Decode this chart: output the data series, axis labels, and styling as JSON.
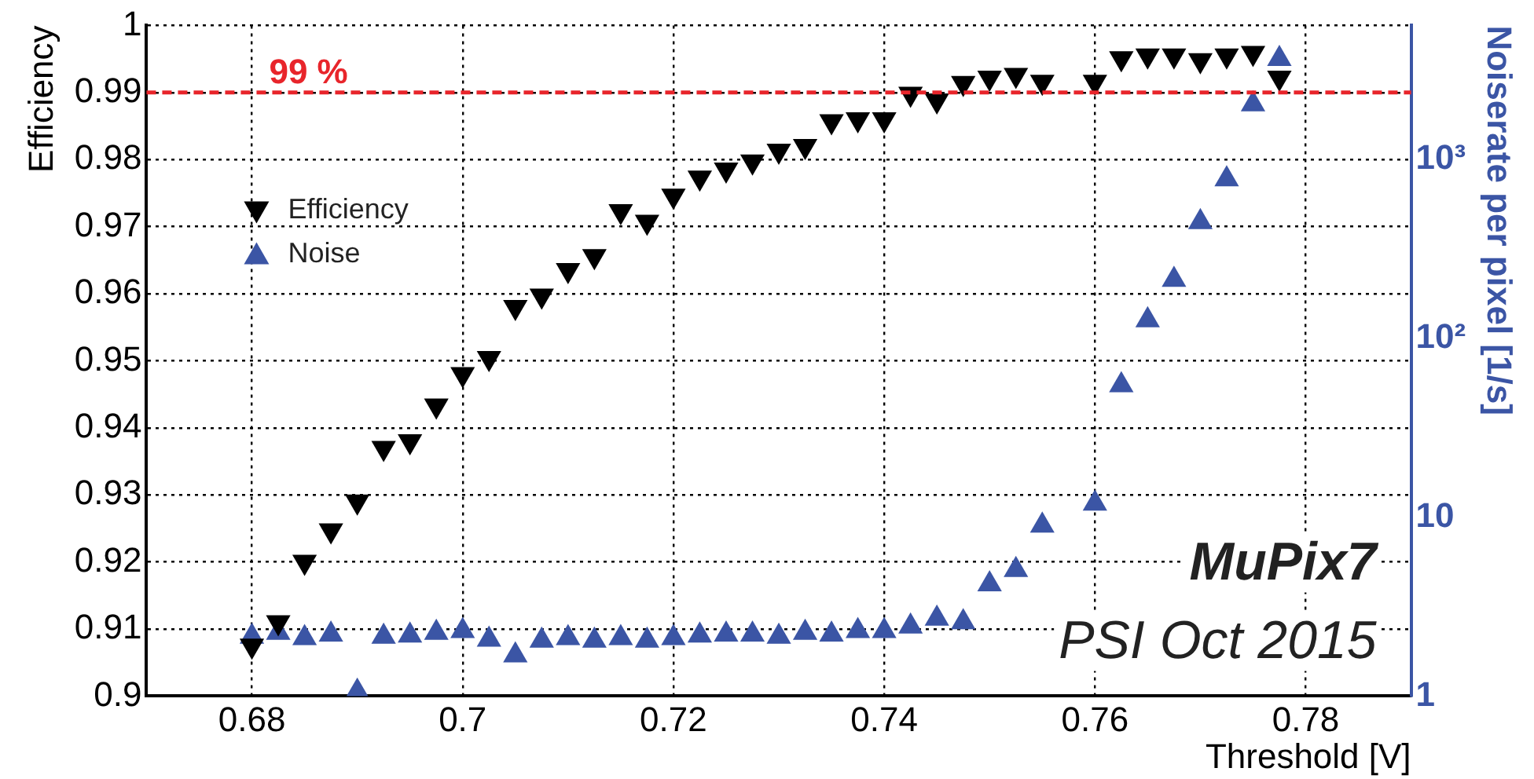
{
  "chart_data": {
    "type": "scatter",
    "xlabel": "Threshold [V]",
    "ylabel": "Efficiency",
    "y2label": "Noiserate per pixel [1/s]",
    "x": [
      0.68,
      0.6825,
      0.685,
      0.6875,
      0.69,
      0.6925,
      0.695,
      0.6975,
      0.7,
      0.7025,
      0.705,
      0.7075,
      0.71,
      0.7125,
      0.715,
      0.7175,
      0.72,
      0.7225,
      0.725,
      0.7275,
      0.73,
      0.7325,
      0.735,
      0.7375,
      0.74,
      0.7425,
      0.745,
      0.7475,
      0.75,
      0.7525,
      0.755,
      0.7575,
      0.76,
      0.7625,
      0.765,
      0.7675,
      0.77,
      0.7725,
      0.775,
      0.7775
    ],
    "series": [
      {
        "name": "Efficiency",
        "color": "#000000",
        "values": [
          0.9075,
          0.911,
          0.92,
          0.9247,
          0.929,
          0.937,
          0.938,
          0.9433,
          0.948,
          0.9504,
          0.958,
          0.9597,
          0.9635,
          0.9656,
          0.9723,
          0.9707,
          0.9746,
          0.9773,
          0.9785,
          0.9797,
          0.9813,
          0.982,
          0.9857,
          0.986,
          0.986,
          0.9898,
          0.9888,
          0.9914,
          0.9922,
          0.9926,
          0.9916,
          null,
          0.9916,
          0.9951,
          0.9955,
          0.9955,
          0.9948,
          0.9955,
          0.9959,
          0.9922
        ]
      },
      {
        "name": "Noise",
        "color": "#3b55a5",
        "axis": "y2",
        "values": [
          2.15,
          2.26,
          2.11,
          2.21,
          1.06,
          2.15,
          2.18,
          2.26,
          2.31,
          2.07,
          1.69,
          2.04,
          2.11,
          2.04,
          2.11,
          2.04,
          2.11,
          2.18,
          2.21,
          2.21,
          2.15,
          2.26,
          2.21,
          2.31,
          2.31,
          2.45,
          2.71,
          2.59,
          4.22,
          5.07,
          8.98,
          null,
          11.9,
          54.6,
          126,
          212,
          446,
          774,
          2030,
          3640
        ]
      }
    ],
    "xlim": [
      0.67,
      0.79
    ],
    "xticks": [
      0.68,
      0.7,
      0.72,
      0.74,
      0.76,
      0.78
    ],
    "ylim": [
      0.9,
      1
    ],
    "yticks": [
      0.9,
      0.91,
      0.92,
      0.93,
      0.94,
      0.95,
      0.96,
      0.97,
      0.98,
      0.99,
      1
    ],
    "y2lim": [
      1,
      5600
    ],
    "y2ticks": [
      1,
      10,
      {
        "value": 100,
        "label": "10²"
      },
      {
        "value": 1000,
        "label": "10³"
      }
    ],
    "log": "y2",
    "grid": true,
    "legend": "top left",
    "marker": "triangle",
    "ref_lines": [
      {
        "axis": "y",
        "value": 0.99,
        "label": "99 %",
        "color": "#e8252b",
        "line_style": "dashed"
      }
    ],
    "annotations": [
      "MuPix7",
      "PSI Oct 2015"
    ]
  }
}
